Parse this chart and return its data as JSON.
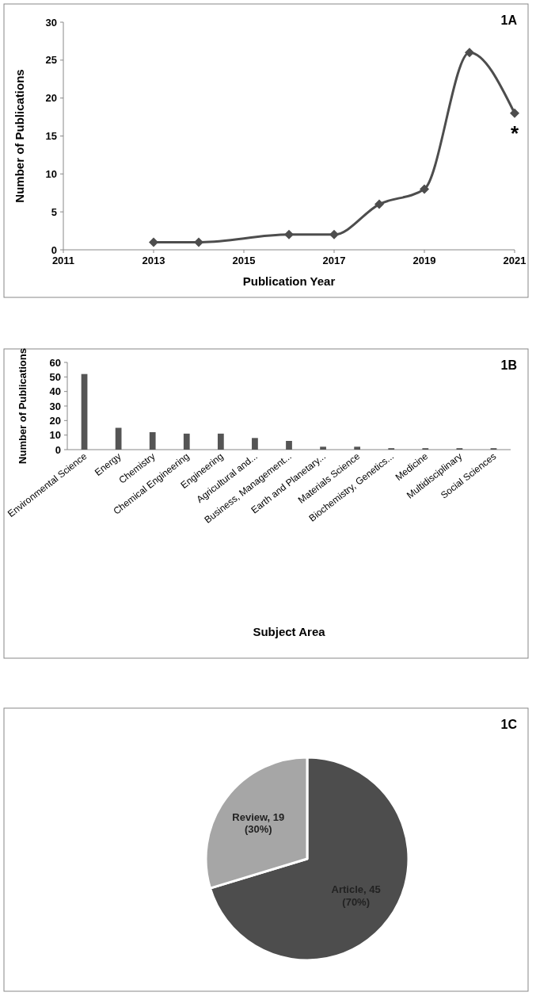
{
  "chart_data": [
    {
      "type": "line",
      "title": "1A",
      "xlabel": "Publication Year",
      "ylabel": "Number of Publications",
      "x": [
        2013,
        2014,
        2016,
        2017,
        2018,
        2019,
        2020,
        2021
      ],
      "series": [
        {
          "color": "#4d4d4d",
          "values": [
            1,
            1,
            2,
            2,
            6,
            8,
            26,
            18
          ]
        }
      ],
      "xlim": [
        2011,
        2021
      ],
      "xticks": [
        2011,
        2013,
        2015,
        2017,
        2019,
        2021
      ],
      "ylim": [
        0,
        30
      ],
      "yticks": [
        0,
        5,
        10,
        15,
        20,
        25,
        30
      ],
      "marker": "diamond",
      "grid": false,
      "legend": false,
      "annotations": [
        {
          "text": "*",
          "x": 2021,
          "y": 18
        }
      ]
    },
    {
      "type": "bar",
      "title": "1B",
      "xlabel": "Subject Area",
      "ylabel": "Number of Publications",
      "categories": [
        "Environmental Science",
        "Energy",
        "Chemistry",
        "Chemical Engineering",
        "Engineering",
        "Agricultural and...",
        "Business, Management...",
        "Earth and Planetary...",
        "Materials Science",
        "Biochemistry, Genetics...",
        "Medicine",
        "Multidisciplinary",
        "Social Sciences"
      ],
      "values": [
        52,
        15,
        12,
        11,
        11,
        8,
        6,
        2,
        2,
        1,
        1,
        1,
        1
      ],
      "color": "#555555",
      "ylim": [
        0,
        60
      ],
      "yticks": [
        0,
        10,
        20,
        30,
        40,
        50,
        60
      ],
      "grid": false,
      "legend": false
    },
    {
      "type": "pie",
      "title": "1C",
      "categories": [
        "Article",
        "Review"
      ],
      "values": [
        45,
        19
      ],
      "colors": [
        "#4d4d4d",
        "#a6a6a6"
      ],
      "value_labels": [
        ", 45 (70%)",
        ", 19 (30%)"
      ],
      "legend": false
    }
  ]
}
